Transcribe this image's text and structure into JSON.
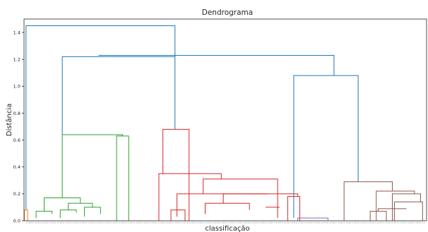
{
  "chart_data": {
    "type": "dendrogram",
    "title": "Dendrograma",
    "xlabel": "classificação",
    "ylabel": "Distância",
    "ylim": [
      0,
      1.5
    ],
    "y_ticks": [
      0.0,
      0.2,
      0.4,
      0.6,
      0.8,
      1.0,
      1.2,
      1.4
    ],
    "grid": false,
    "x_extent": [
      0,
      100
    ],
    "colors": {
      "above_threshold": "#1f77b4",
      "orange": "#ff7f0e",
      "green": "#2ca02c",
      "red": "#d62728",
      "purple": "#9467bd",
      "brown": "#8c564b",
      "axis": "#262626"
    },
    "merges": [
      {
        "x1": 0.5,
        "x2": 37.5,
        "y_left": 0.08,
        "y_right": 1.22,
        "height": 1.45,
        "color": "above_threshold"
      },
      {
        "x1": 18.5,
        "x2": 77.0,
        "y_left": 1.23,
        "y_right": 1.08,
        "height": 1.23,
        "color": "above_threshold"
      },
      {
        "x1": 9.5,
        "x2": 37.5,
        "y_left": 0.64,
        "y_right": 0.68,
        "height": 1.22,
        "color": "above_threshold"
      },
      {
        "x1": 67.0,
        "x2": 83.0,
        "y_left": 0.02,
        "y_right": 0.29,
        "height": 1.08,
        "color": "above_threshold"
      },
      {
        "x1": 0.1,
        "x2": 0.9,
        "y_left": 0.0,
        "y_right": 0.0,
        "height": 0.08,
        "color": "orange"
      },
      {
        "x1": 9.5,
        "x2": 24.5,
        "y_left": 0.17,
        "y_right": 0.63,
        "height": 0.64,
        "color": "green"
      },
      {
        "x1": 23.0,
        "x2": 26.0,
        "y_left": 0.0,
        "y_right": 0.0,
        "height": 0.63,
        "color": "green"
      },
      {
        "x1": 5.0,
        "x2": 14.0,
        "y_left": 0.07,
        "y_right": 0.13,
        "height": 0.17,
        "color": "green"
      },
      {
        "x1": 3.0,
        "x2": 7.0,
        "y_left": 0.02,
        "y_right": 0.05,
        "height": 0.07,
        "color": "green"
      },
      {
        "x1": 11.0,
        "x2": 17.0,
        "y_left": 0.08,
        "y_right": 0.1,
        "height": 0.13,
        "color": "green"
      },
      {
        "x1": 9.0,
        "x2": 13.0,
        "y_left": 0.02,
        "y_right": 0.06,
        "height": 0.08,
        "color": "green"
      },
      {
        "x1": 15.0,
        "x2": 19.0,
        "y_left": 0.03,
        "y_right": 0.05,
        "height": 0.1,
        "color": "green"
      },
      {
        "x1": 34.5,
        "x2": 41.0,
        "y_left": 0.35,
        "y_right": 0.0,
        "height": 0.68,
        "color": "red"
      },
      {
        "x1": 33.5,
        "x2": 49.0,
        "y_left": 0.0,
        "y_right": 0.31,
        "height": 0.35,
        "color": "red"
      },
      {
        "x1": 44.5,
        "x2": 63.0,
        "y_left": 0.2,
        "y_right": 0.02,
        "height": 0.31,
        "color": "red"
      },
      {
        "x1": 38.0,
        "x2": 60.5,
        "y_left": 0.03,
        "y_right": 0.2,
        "height": 0.2,
        "color": "red"
      },
      {
        "x1": 49.5,
        "x2": 68.0,
        "y_left": 0.13,
        "y_right": 0.18,
        "height": 0.2,
        "color": "red"
      },
      {
        "x1": 45.0,
        "x2": 56.0,
        "y_left": 0.05,
        "y_right": 0.08,
        "height": 0.13,
        "color": "red"
      },
      {
        "x1": 60.0,
        "x2": 63.5,
        "y_left": 0.1,
        "y_right": 0.1,
        "height": 0.1,
        "color": "red"
      },
      {
        "x1": 65.5,
        "x2": 68.5,
        "y_left": 0.0,
        "y_right": 0.0,
        "height": 0.18,
        "color": "red"
      },
      {
        "x1": 36.5,
        "x2": 40.0,
        "y_left": 0.0,
        "y_right": 0.0,
        "height": 0.08,
        "color": "red"
      },
      {
        "x1": 68.0,
        "x2": 75.5,
        "y_left": 0.0,
        "y_right": 0.0,
        "height": 0.02,
        "color": "purple"
      },
      {
        "x1": 79.5,
        "x2": 91.5,
        "y_left": 0.0,
        "y_right": 0.22,
        "height": 0.29,
        "color": "brown"
      },
      {
        "x1": 87.5,
        "x2": 97.0,
        "y_left": 0.0,
        "y_right": 0.2,
        "height": 0.22,
        "color": "brown"
      },
      {
        "x1": 91.5,
        "x2": 98.5,
        "y_left": 0.0,
        "y_right": 0.14,
        "height": 0.2,
        "color": "brown"
      },
      {
        "x1": 88.0,
        "x2": 95.0,
        "y_left": 0.07,
        "y_right": 0.09,
        "height": 0.09,
        "color": "brown"
      },
      {
        "x1": 92.0,
        "x2": 99.0,
        "y_left": 0.0,
        "y_right": 0.0,
        "height": 0.14,
        "color": "brown"
      },
      {
        "x1": 86.0,
        "x2": 90.0,
        "y_left": 0.0,
        "y_right": 0.0,
        "height": 0.07,
        "color": "brown"
      }
    ]
  }
}
